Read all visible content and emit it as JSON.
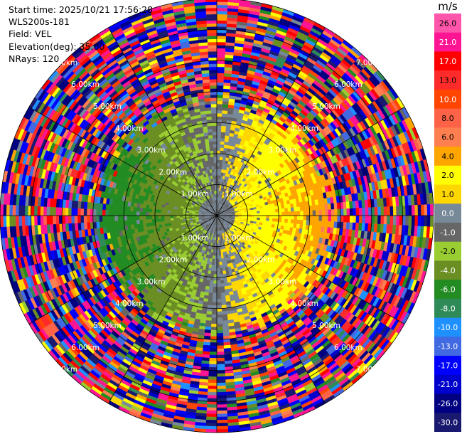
{
  "info": {
    "start_time": "Start time: 2025/10/21 17:56:28",
    "station": "WLS200s-181",
    "field": "Field: VEL",
    "elevation": "Elevation(deg): 35.00",
    "nrays": "NRays: 120"
  },
  "colorbar": {
    "unit": "m/s",
    "ticks": [
      "26.0",
      "21.0",
      "17.0",
      "13.0",
      "10.0",
      "8.0",
      "6.0",
      "4.0",
      "2.0",
      "1.0",
      "0.0",
      "-1.0",
      "-2.0",
      "-4.0",
      "-6.0",
      "-8.0",
      "-10.0",
      "-13.0",
      "-17.0",
      "-21.0",
      "-26.0",
      "-30.0"
    ],
    "colors": [
      "#ff55aa",
      "#ff1493",
      "#ff0000",
      "#ff2b2b",
      "#ff4500",
      "#ff6347",
      "#ff7f50",
      "#ffa500",
      "#ffff00",
      "#ffd700",
      "#778899",
      "#666666",
      "#9acd32",
      "#6b8e23",
      "#228b22",
      "#2e8b57",
      "#1e90ff",
      "#4169e1",
      "#0000ff",
      "#0000cd",
      "#000080",
      "#191970"
    ]
  },
  "chart_data": {
    "type": "heatmap",
    "projection": "polar-ppi",
    "field": "VEL",
    "units": "m/s",
    "elevation_deg": 35.0,
    "nrays": 120,
    "vmin": -30.0,
    "vmax": 26.0,
    "max_range_km": 7.0,
    "range_rings_km": [
      1.0,
      2.0,
      3.0,
      4.0,
      5.0,
      6.0,
      7.0
    ],
    "ring_label_texts": [
      "1.00km",
      "2.00km",
      "3.00km",
      "4.00km",
      "5.00km",
      "6.00km",
      "7.00km"
    ],
    "spokes_deg": [
      0,
      30,
      60,
      90,
      120,
      150,
      180,
      210,
      240,
      270,
      300,
      330
    ],
    "coherent_range_km": 3.5,
    "approaching_sector_deg": [
      180,
      360
    ],
    "receding_sector_deg": [
      0,
      180
    ]
  }
}
